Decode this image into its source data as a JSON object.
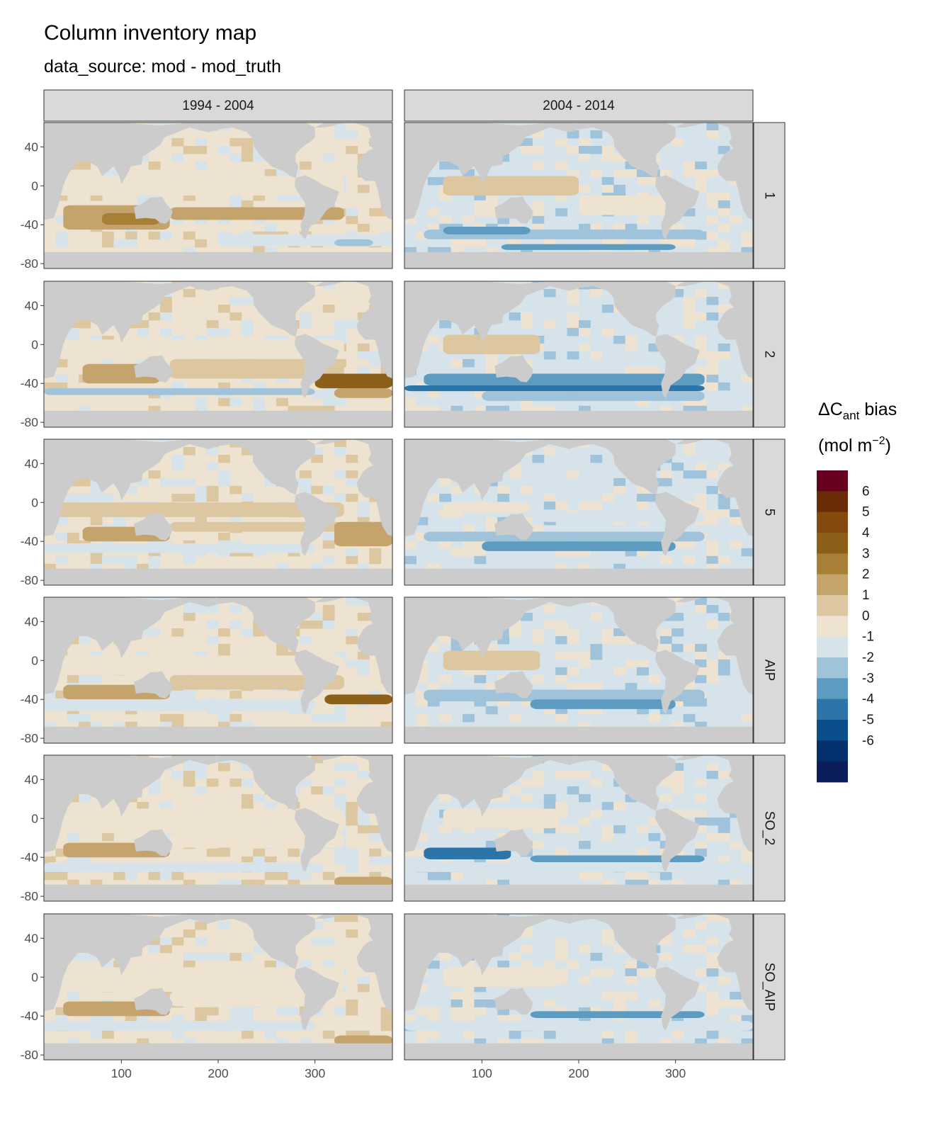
{
  "title": "Column inventory map",
  "subtitle": "data_source: mod - mod_truth",
  "chart_data": {
    "type": "heatmap",
    "title": "Column inventory map",
    "subtitle": "data_source: mod - mod_truth",
    "facet_columns": [
      "1994 - 2004",
      "2004 - 2014"
    ],
    "facet_rows": [
      "1",
      "2",
      "5",
      "AIP",
      "SO_2",
      "SO_AIP"
    ],
    "x_ticks": [
      100,
      200,
      300
    ],
    "y_ticks": [
      40,
      0,
      -40,
      -80
    ],
    "xlim": [
      20,
      380
    ],
    "ylim": [
      -85,
      65
    ],
    "legend": {
      "title_main": "ΔC",
      "title_sub": "ant",
      "title_after": " bias",
      "unit_a": "(mol m",
      "unit_sup": "−2",
      "unit_b": ")",
      "labels": [
        "6",
        "5",
        "4",
        "3",
        "2",
        "1",
        "0",
        "-1",
        "-2",
        "-3",
        "-4",
        "-5",
        "-6"
      ],
      "colors": [
        "#67001f",
        "#6a2c07",
        "#84490c",
        "#8c6019",
        "#a87f36",
        "#c4a36c",
        "#dcc7a0",
        "#ede3d0",
        "#d7e3ea",
        "#9fc3da",
        "#5d9bc0",
        "#2c75a8",
        "#0a4f8c",
        "#05306e",
        "#0b1d5a"
      ],
      "placement": "right"
    },
    "colors": {
      "land": "#cccccc",
      "strip": "#d9d9d9"
    }
  }
}
